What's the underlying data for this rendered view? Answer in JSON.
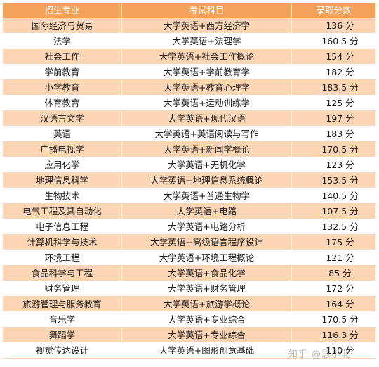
{
  "header": {
    "major": "招生专业",
    "subjects": "考试科目",
    "score": "录取分数"
  },
  "rows": [
    {
      "major": "国际经济与贸易",
      "subjects": "大学英语+西方经济学",
      "score": "136 分"
    },
    {
      "major": "法学",
      "subjects": "大学英语+法理学",
      "score": "160.5 分"
    },
    {
      "major": "社会工作",
      "subjects": "大学英语+社会工作概论",
      "score": "154 分"
    },
    {
      "major": "学前教育",
      "subjects": "大学英语+学前教育学",
      "score": "182 分"
    },
    {
      "major": "小学教育",
      "subjects": "大学英语+教育心理学",
      "score": "183.5 分"
    },
    {
      "major": "体育教育",
      "subjects": "大学英语+运动训练学",
      "score": "125 分"
    },
    {
      "major": "汉语言文学",
      "subjects": "大学英语+现代汉语",
      "score": "197 分"
    },
    {
      "major": "英语",
      "subjects": "大学英语+英语阅读与写作",
      "score": "183 分"
    },
    {
      "major": "广播电视学",
      "subjects": "大学英语+新闻学概论",
      "score": "170.5 分"
    },
    {
      "major": "应用化学",
      "subjects": "大学英语+无机化学",
      "score": "123 分"
    },
    {
      "major": "地理信息科学",
      "subjects": "大学英语+地理信息系统概论",
      "score": "153.5 分"
    },
    {
      "major": "生物技术",
      "subjects": "大学英语+普通生物学",
      "score": "140.5 分"
    },
    {
      "major": "电气工程及其自动化",
      "subjects": "大学英语+电路",
      "score": "107.5 分"
    },
    {
      "major": "电子信息工程",
      "subjects": "大学英语+电路分析",
      "score": "132.5 分"
    },
    {
      "major": "计算机科学与技术",
      "subjects": "大学英语+高级语言程序设计",
      "score": "175 分"
    },
    {
      "major": "环境工程",
      "subjects": "大学英语+环境工程概论",
      "score": "121 分"
    },
    {
      "major": "食品科学与工程",
      "subjects": "大学英语+食品化学",
      "score": "85 分"
    },
    {
      "major": "财务管理",
      "subjects": "大学英语+财务管理",
      "score": "172 分"
    },
    {
      "major": "旅游管理与服务教育",
      "subjects": "大学英语+旅游学概论",
      "score": "164 分"
    },
    {
      "major": "音乐学",
      "subjects": "大学英语+专业综合",
      "score": "170.5 分"
    },
    {
      "major": "舞蹈学",
      "subjects": "大学英语+专业综合",
      "score": "116.3 分"
    },
    {
      "major": "视觉传达设计",
      "subjects": "大学英语+图形创意基础",
      "score": "110 分"
    }
  ],
  "watermark": "知乎 @慧小北"
}
